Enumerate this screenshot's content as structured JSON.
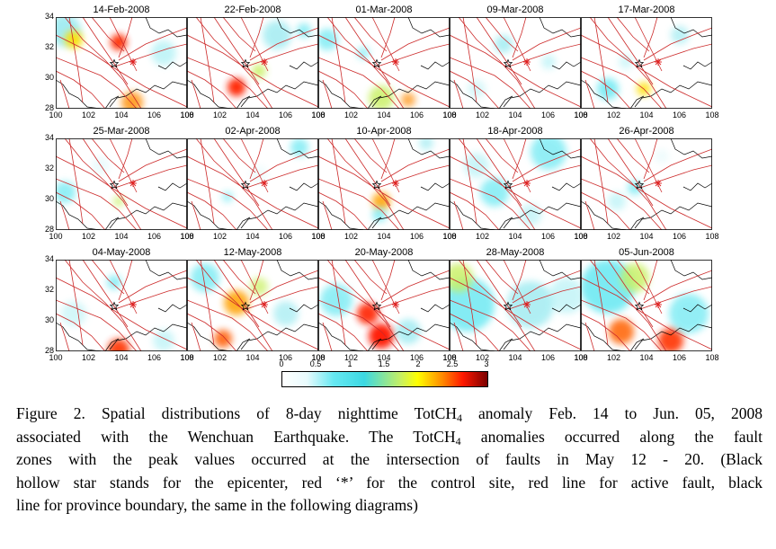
{
  "figure": {
    "y_ticks": [
      "34",
      "32",
      "30",
      "28"
    ],
    "x_ticks": [
      "100",
      "102",
      "104",
      "106",
      "108"
    ],
    "panels": [
      {
        "date": "14-Feb-2008"
      },
      {
        "date": "22-Feb-2008"
      },
      {
        "date": "01-Mar-2008"
      },
      {
        "date": "09-Mar-2008"
      },
      {
        "date": "17-Mar-2008"
      },
      {
        "date": "25-Mar-2008"
      },
      {
        "date": "02-Apr-2008"
      },
      {
        "date": "10-Apr-2008"
      },
      {
        "date": "18-Apr-2008"
      },
      {
        "date": "26-Apr-2008"
      },
      {
        "date": "04-May-2008"
      },
      {
        "date": "12-May-2008"
      },
      {
        "date": "20-May-2008"
      },
      {
        "date": "28-May-2008"
      },
      {
        "date": "05-Jun-2008"
      }
    ],
    "colorbar": {
      "ticks": [
        "0",
        "0.5",
        "1",
        "1.5",
        "2",
        "2.5",
        "3"
      ],
      "colors": [
        "#ffffff",
        "#e8fbfd",
        "#66e8f2",
        "#3cd8e2",
        "#c8f060",
        "#ffff00",
        "#ff8a00",
        "#ff1800",
        "#7a0000"
      ]
    },
    "colors": {
      "fault_line": "#cc2a2a",
      "province_boundary": "#000000",
      "control_site": "#e02020",
      "epicenter": "#000000"
    }
  },
  "caption": {
    "lines": [
      {
        "pre": "Figure 2. Spatial distributions of 8-day nighttime TotCH",
        "sub": "4",
        "post": " anomaly Feb. 14 to Jun. 05, 2008"
      },
      {
        "pre": "associated with the Wenchuan Earthquake. The TotCH",
        "sub": "4",
        "post": " anomalies occurred along the fault"
      },
      {
        "pre": "zones with the peak values occurred at the intersection of faults in May 12 - 20. (Black",
        "sub": "",
        "post": ""
      },
      {
        "pre": "hollow star stands for the epicenter, red ‘*’ for the control site, red line for active fault, black",
        "sub": "",
        "post": ""
      },
      {
        "pre": "line for province boundary, the same in the following diagrams)",
        "sub": "",
        "post": ""
      }
    ]
  }
}
